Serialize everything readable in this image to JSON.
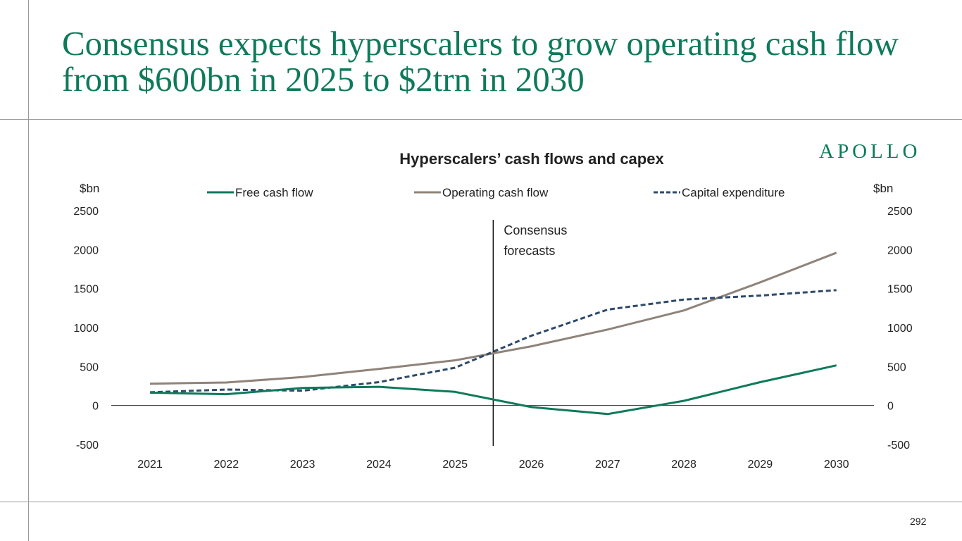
{
  "slide": {
    "title": "Consensus expects hyperscalers to grow operating cash flow from $600bn in 2025 to $2trn in 2030",
    "logo": "APOLLO",
    "page_number": "292"
  },
  "colors": {
    "brand_green": "#0e7a5a",
    "free_cash_flow": "#0e7a5a",
    "operating_cash_flow": "#8f837a",
    "capital_expenditure": "#2e4a6b"
  },
  "chart_data": {
    "type": "line",
    "title": "Hyperscalers’ cash flows and capex",
    "ylabel_left": "$bn",
    "ylabel_right": "$bn",
    "x": [
      "2021",
      "2022",
      "2023",
      "2024",
      "2025",
      "2026",
      "2027",
      "2028",
      "2029",
      "2030"
    ],
    "ylim": [
      -500,
      2500
    ],
    "yticks": [
      "2500",
      "2000",
      "1500",
      "1000",
      "500",
      "0",
      "-500"
    ],
    "series": [
      {
        "name": "Free cash flow",
        "style": "solid",
        "values": [
          165,
          145,
          225,
          240,
          175,
          -20,
          -110,
          60,
          300,
          515
        ]
      },
      {
        "name": "Operating cash flow",
        "style": "solid",
        "values": [
          280,
          295,
          365,
          470,
          580,
          760,
          975,
          1220,
          1580,
          1960
        ]
      },
      {
        "name": "Capital expenditure",
        "style": "dashed",
        "values": [
          170,
          205,
          190,
          300,
          485,
          895,
          1230,
          1360,
          1410,
          1480
        ]
      }
    ],
    "annotation": {
      "text_lines": [
        "Consensus",
        "forecasts"
      ],
      "x_position": "between 2025 and 2026"
    },
    "legend_placement": "top",
    "grid": false
  }
}
